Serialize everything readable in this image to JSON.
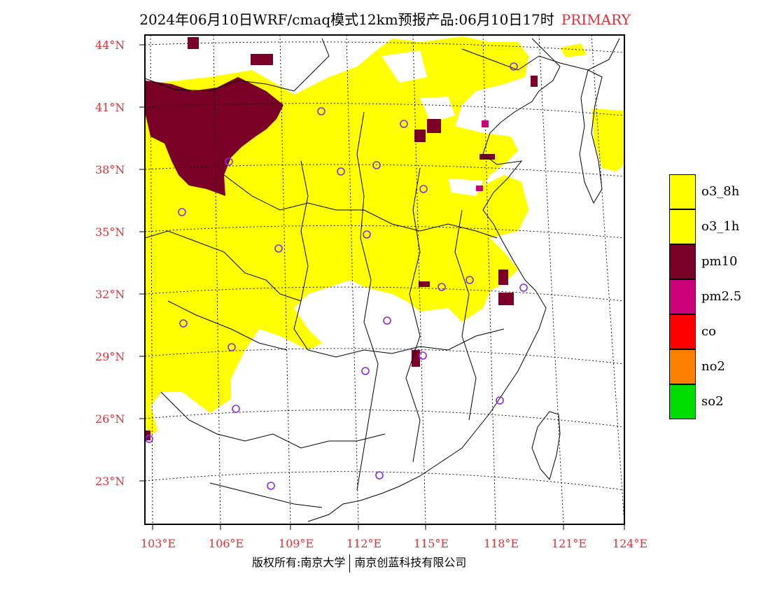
{
  "title": {
    "main": "2024年06月10日WRF/cmaq模式12km预报产品:06月10日17时",
    "tag": "PRIMARY"
  },
  "axes": {
    "lat_labels": [
      "44°N",
      "41°N",
      "38°N",
      "35°N",
      "32°N",
      "29°N",
      "26°N",
      "23°N"
    ],
    "lon_labels": [
      "103°E",
      "106°E",
      "109°E",
      "112°E",
      "115°E",
      "118°E",
      "121°E",
      "124°E"
    ]
  },
  "legend": [
    {
      "label": "o3_8h",
      "color": "#ffff00"
    },
    {
      "label": "o3_1h",
      "color": "#ffff00"
    },
    {
      "label": "pm10",
      "color": "#7a0028"
    },
    {
      "label": "pm2.5",
      "color": "#cc007a"
    },
    {
      "label": "co",
      "color": "#ff0000"
    },
    {
      "label": "no2",
      "color": "#ff8000"
    },
    {
      "label": "so2",
      "color": "#00dd00"
    }
  ],
  "footer": {
    "left": "版权所有:南京大学",
    "right": "南京创蓝科技有限公司"
  },
  "colors": {
    "o3": "#ffff00",
    "pm10": "#7a0028",
    "pm25": "#cc007a",
    "station_circle": "#8a2be2",
    "label_red": "#e0303a"
  }
}
